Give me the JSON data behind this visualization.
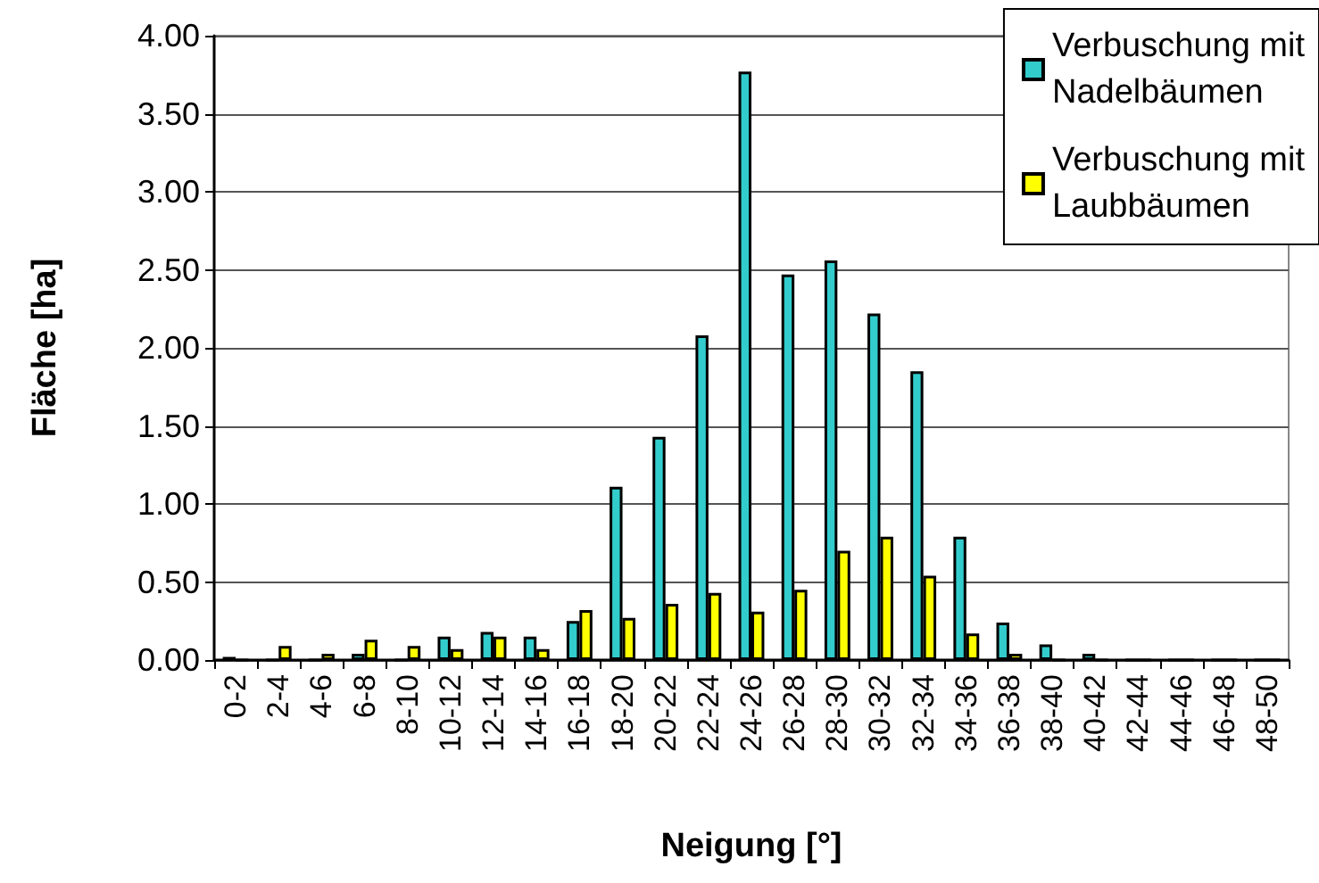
{
  "chart_data": {
    "type": "bar",
    "xlabel": "Neigung [°]",
    "ylabel": "Fläche [ha]",
    "categories": [
      "0-2",
      "2-4",
      "4-6",
      "6-8",
      "8-10",
      "10-12",
      "12-14",
      "14-16",
      "16-18",
      "18-20",
      "20-22",
      "22-24",
      "24-26",
      "26-28",
      "28-30",
      "30-32",
      "32-34",
      "34-36",
      "36-38",
      "38-40",
      "40-42",
      "42-44",
      "44-46",
      "46-48",
      "48-50"
    ],
    "series": [
      {
        "name": "Verbuschung mit Nadelbäumen",
        "color": "#33cccc",
        "values": [
          0.02,
          0,
          0,
          0.04,
          0,
          0.15,
          0.18,
          0.15,
          0.25,
          1.11,
          1.43,
          2.08,
          3.77,
          2.47,
          2.56,
          2.22,
          1.85,
          0.79,
          0.24,
          0.1,
          0.04,
          0,
          0,
          0,
          0
        ]
      },
      {
        "name": "Verbuschung mit Laubbäumen",
        "color": "#ffff00",
        "values": [
          0,
          0.09,
          0.04,
          0.13,
          0.09,
          0.07,
          0.15,
          0.07,
          0.32,
          0.27,
          0.36,
          0.43,
          0.31,
          0.45,
          0.7,
          0.79,
          0.54,
          0.17,
          0.04,
          0,
          0,
          0,
          0,
          0,
          0
        ]
      }
    ],
    "ylim": [
      0,
      4
    ],
    "yticks": [
      {
        "value": 0,
        "label": "0.00"
      },
      {
        "value": 0.5,
        "label": "0.50"
      },
      {
        "value": 1,
        "label": "1.00"
      },
      {
        "value": 1.5,
        "label": "1.50"
      },
      {
        "value": 2,
        "label": "2.00"
      },
      {
        "value": 2.5,
        "label": "2.50"
      },
      {
        "value": 3,
        "label": "3.00"
      },
      {
        "value": 3.5,
        "label": "3.50"
      },
      {
        "value": 4,
        "label": "4.00"
      }
    ],
    "grid": "y",
    "legend": "top right"
  }
}
